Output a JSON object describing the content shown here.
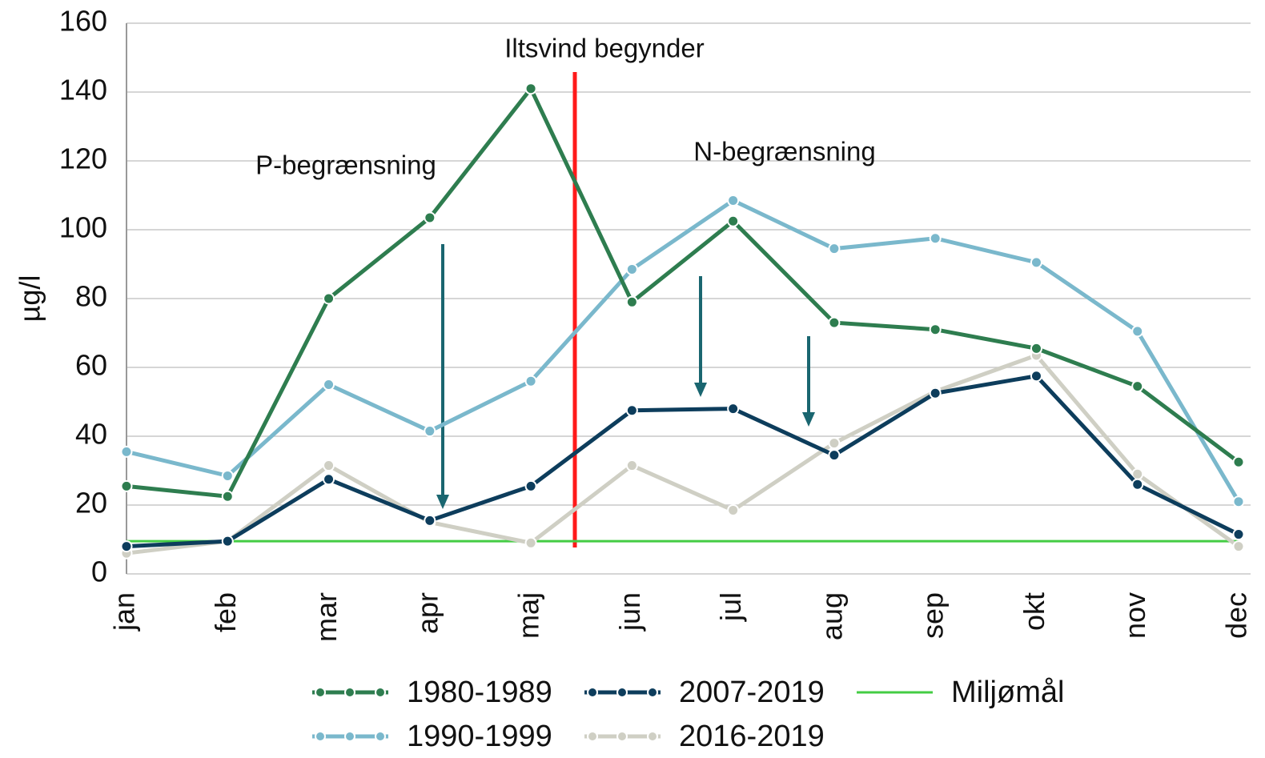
{
  "chart_data": {
    "type": "line",
    "y_label": "µg/l",
    "categories": [
      "jan",
      "feb",
      "mar",
      "apr",
      "maj",
      "jun",
      "jul",
      "aug",
      "sep",
      "okt",
      "nov",
      "dec"
    ],
    "series": [
      {
        "name": "1980-1989",
        "color": "#2e7d4f",
        "markers": true,
        "values": [
          25.5,
          22.5,
          80,
          103.5,
          141,
          79,
          102.5,
          73,
          71,
          65.5,
          54.5,
          32.5
        ]
      },
      {
        "name": "1990-1999",
        "color": "#7ab8cc",
        "markers": true,
        "values": [
          35.5,
          28.5,
          55,
          41.5,
          56,
          88.5,
          108.5,
          94.5,
          97.5,
          90.5,
          70.5,
          21
        ]
      },
      {
        "name": "2007-2019",
        "color": "#0d3d5c",
        "markers": true,
        "values": [
          8,
          9.5,
          27.5,
          15.5,
          25.5,
          47.5,
          48,
          34.5,
          52.5,
          57.5,
          26,
          11.5
        ]
      },
      {
        "name": "2016-2019",
        "color": "#cfcfc4",
        "markers": true,
        "values": [
          6,
          9.5,
          31.5,
          15,
          9,
          31.5,
          18.5,
          38,
          53,
          63.5,
          29,
          8
        ]
      },
      {
        "name": "Miljømål",
        "color": "#44cc44",
        "markers": false,
        "values": [
          9.5,
          9.5,
          9.5,
          9.5,
          9.5,
          9.5,
          9.5,
          9.5,
          9.5,
          9.5,
          9.5,
          9.5
        ]
      }
    ],
    "annotations": [
      "Iltsvind begynder",
      "P-begrænsning",
      "N-begrænsning"
    ],
    "ylim": [
      0,
      160
    ],
    "yticks": [
      0,
      20,
      40,
      60,
      80,
      100,
      120,
      140,
      160
    ],
    "grid": true
  }
}
